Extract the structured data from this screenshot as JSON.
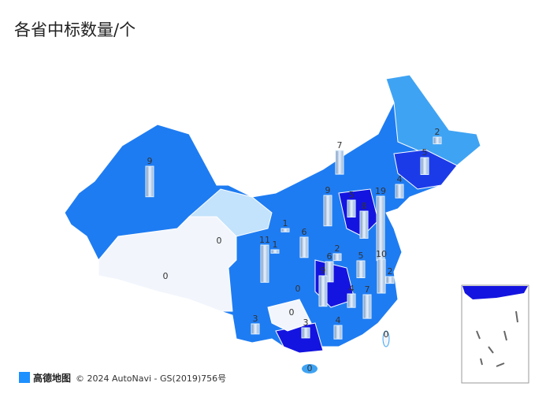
{
  "title": "各省中标数量/个",
  "map": {
    "values": [
      9,
      0,
      0,
      7,
      2,
      5,
      4,
      9,
      19,
      5,
      8,
      1,
      1,
      11,
      6,
      2,
      6,
      5,
      10,
      2,
      9,
      0,
      4,
      7,
      0,
      3,
      3,
      4,
      0,
      0
    ]
  },
  "attribution": {
    "logo": "高德地图",
    "text": "© 2024 AutoNavi - GS(2019)756号"
  }
}
